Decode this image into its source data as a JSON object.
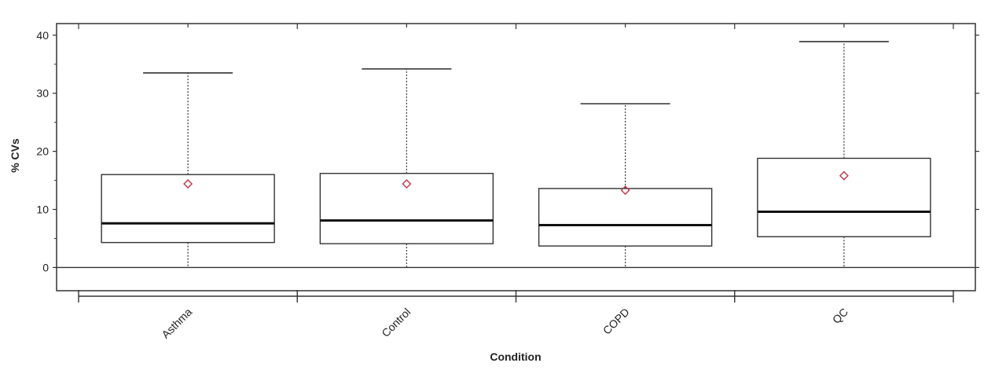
{
  "chart_data": {
    "type": "boxplot",
    "xlabel": "Condition",
    "ylabel": "% CVs",
    "ylim": [
      -4,
      42
    ],
    "yticks": [
      0,
      10,
      20,
      30,
      40
    ],
    "categories": [
      "Asthma",
      "Control",
      "COPD",
      "QC"
    ],
    "boxes": [
      {
        "category": "Asthma",
        "whisker_low": 0,
        "q1": 4.3,
        "median": 7.6,
        "q3": 16.0,
        "whisker_high": 33.5,
        "mean": 14.4
      },
      {
        "category": "Control",
        "whisker_low": 0,
        "q1": 4.1,
        "median": 8.1,
        "q3": 16.2,
        "whisker_high": 34.2,
        "mean": 14.4
      },
      {
        "category": "COPD",
        "whisker_low": 0,
        "q1": 3.7,
        "median": 7.3,
        "q3": 13.6,
        "whisker_high": 28.2,
        "mean": 13.3
      },
      {
        "category": "QC",
        "whisker_low": 0,
        "q1": 5.3,
        "median": 9.6,
        "q3": 18.8,
        "whisker_high": 38.9,
        "mean": 15.8
      }
    ],
    "reference_line": 0,
    "colors": {
      "box": "#333333",
      "median": "#111111",
      "mean_marker": "#c0364a",
      "axis": "#333333"
    }
  }
}
